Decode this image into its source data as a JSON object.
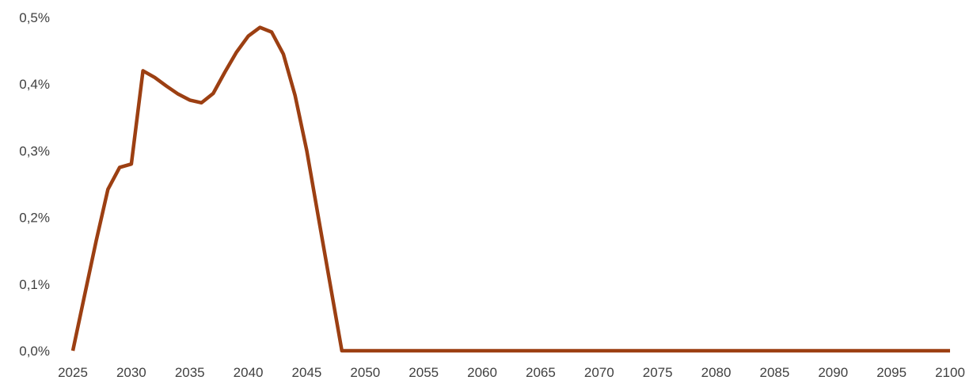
{
  "chart_data": {
    "type": "line",
    "title": "",
    "xlabel": "",
    "ylabel": "",
    "xlim": [
      2025,
      2100
    ],
    "ylim": [
      0,
      0.5
    ],
    "grid": false,
    "legend": "none",
    "x_ticks": [
      "2025",
      "2030",
      "2035",
      "2040",
      "2045",
      "2050",
      "2055",
      "2060",
      "2065",
      "2070",
      "2075",
      "2080",
      "2085",
      "2090",
      "2095",
      "2100"
    ],
    "y_ticks": [
      "0,0%",
      "0,1%",
      "0,2%",
      "0,3%",
      "0,4%",
      "0,5%"
    ],
    "series": [
      {
        "color": "#9C3F12",
        "x": [
          2025,
          2026,
          2027,
          2028,
          2029,
          2030,
          2031,
          2032,
          2033,
          2034,
          2035,
          2036,
          2037,
          2038,
          2039,
          2040,
          2041,
          2042,
          2043,
          2044,
          2045,
          2046,
          2047,
          2048,
          2049,
          2050,
          2055,
          2060,
          2065,
          2070,
          2075,
          2080,
          2085,
          2090,
          2095,
          2100
        ],
        "y": [
          0.0,
          0.083,
          0.165,
          0.242,
          0.275,
          0.28,
          0.42,
          0.41,
          0.397,
          0.385,
          0.376,
          0.372,
          0.386,
          0.418,
          0.448,
          0.472,
          0.485,
          0.478,
          0.445,
          0.383,
          0.3,
          0.2,
          0.1,
          0.0,
          0.0,
          0.0,
          0.0,
          0.0,
          0.0,
          0.0,
          0.0,
          0.0,
          0.0,
          0.0,
          0.0,
          0.0
        ]
      }
    ]
  }
}
